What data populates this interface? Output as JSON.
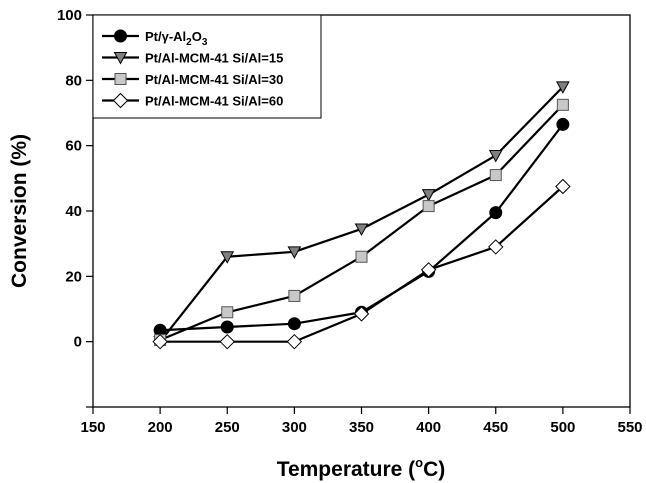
{
  "chart_data": {
    "type": "line",
    "xlabel": "Temperature (",
    "xlabel_unit_sup": "o",
    "xlabel_unit_rest": "C)",
    "ylabel": "Conversion (%)",
    "xlim": [
      150,
      550
    ],
    "ylim": [
      -20,
      100
    ],
    "x_ticks": [
      150,
      200,
      250,
      300,
      350,
      400,
      450,
      500,
      550
    ],
    "y_ticks": [
      0,
      20,
      40,
      60,
      80,
      100
    ],
    "grid": false,
    "legend_placement": "top-left",
    "x": [
      200,
      250,
      300,
      350,
      400,
      450,
      500
    ],
    "series": [
      {
        "key": "pt-al2o3",
        "name_parts": [
          {
            "t": "Pt/γ-Al"
          },
          {
            "t": "2",
            "sub": true
          },
          {
            "t": "O"
          },
          {
            "t": "3",
            "sub": true
          }
        ],
        "marker": "circle",
        "marker_fill": "#000000",
        "marker_stroke": "#000000",
        "values": [
          3.5,
          4.5,
          5.5,
          9,
          21.5,
          39.5,
          66.5
        ]
      },
      {
        "key": "si-al-15",
        "name": "Pt/Al-MCM-41 Si/Al=15",
        "marker": "triangle-down",
        "marker_fill": "#808080",
        "marker_stroke": "#000000",
        "values": [
          0,
          26,
          27.5,
          34.5,
          45,
          57,
          78
        ]
      },
      {
        "key": "si-al-30",
        "name": "Pt/Al-MCM-41 Si/Al=30",
        "marker": "square",
        "marker_fill": "#c8c8c8",
        "marker_stroke": "#555555",
        "values": [
          0.5,
          9,
          14,
          26,
          41.5,
          51,
          72.5
        ]
      },
      {
        "key": "si-al-60",
        "name": "Pt/Al-MCM-41 Si/Al=60",
        "marker": "diamond",
        "marker_fill": "#ffffff",
        "marker_stroke": "#000000",
        "values": [
          0,
          0,
          0,
          8.5,
          22,
          29,
          47.5
        ]
      }
    ]
  }
}
